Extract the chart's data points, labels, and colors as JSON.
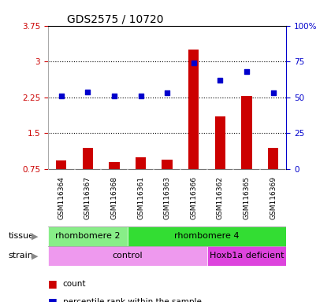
{
  "title": "GDS2575 / 10720",
  "samples": [
    "GSM116364",
    "GSM116367",
    "GSM116368",
    "GSM116361",
    "GSM116363",
    "GSM116366",
    "GSM116362",
    "GSM116365",
    "GSM116369"
  ],
  "counts": [
    0.93,
    1.2,
    0.9,
    1.0,
    0.95,
    3.25,
    1.85,
    2.28,
    1.2
  ],
  "percentile_ranks": [
    51,
    54,
    51,
    51,
    53,
    74,
    62,
    68,
    53
  ],
  "ylim_left": [
    0.75,
    3.75
  ],
  "ylim_right": [
    0,
    100
  ],
  "yticks_left": [
    0.75,
    1.5,
    2.25,
    3.0,
    3.75
  ],
  "yticks_right": [
    0,
    25,
    50,
    75,
    100
  ],
  "ytick_labels_left": [
    "0.75",
    "1.5",
    "2.25",
    "3",
    "3.75"
  ],
  "ytick_labels_right": [
    "0",
    "25",
    "50",
    "75",
    "100%"
  ],
  "hlines": [
    1.5,
    2.25,
    3.0
  ],
  "bar_color": "#cc0000",
  "dot_color": "#0000cc",
  "tissue_groups": [
    {
      "label": "rhombomere 2",
      "start": 0,
      "end": 3,
      "color": "#88ee88"
    },
    {
      "label": "rhombomere 4",
      "start": 3,
      "end": 9,
      "color": "#33dd33"
    }
  ],
  "strain_groups": [
    {
      "label": "control",
      "start": 0,
      "end": 6,
      "color": "#ee99ee"
    },
    {
      "label": "Hoxb1a deficient",
      "start": 6,
      "end": 9,
      "color": "#dd44dd"
    }
  ],
  "legend_items": [
    {
      "label": "count",
      "color": "#cc0000"
    },
    {
      "label": "percentile rank within the sample",
      "color": "#0000cc"
    }
  ],
  "sample_bg_color": "#cccccc",
  "plot_bg": "#ffffff",
  "left_axis_color": "#cc0000",
  "right_axis_color": "#0000cc",
  "bar_width": 0.4
}
